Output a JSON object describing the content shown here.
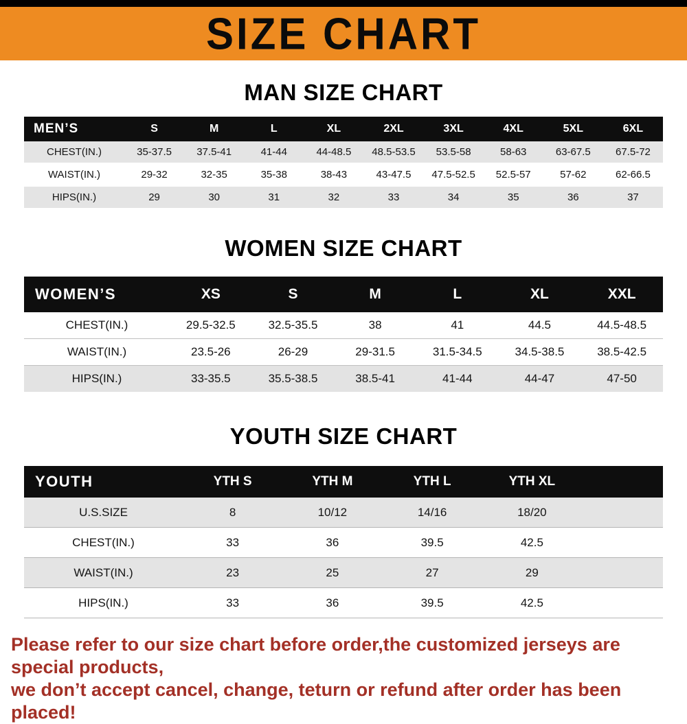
{
  "banner": {
    "title": "SIZE CHART"
  },
  "colors": {
    "banner_orange": "#ee8b21",
    "table_header_black": "#0e0e0e",
    "stripe_gray": "#e4e4e4",
    "footer_red": "#a33026"
  },
  "sections": [
    {
      "heading": "MAN SIZE CHART",
      "table": {
        "header": [
          "MEN’S",
          "S",
          "M",
          "L",
          "XL",
          "2XL",
          "3XL",
          "4XL",
          "5XL",
          "6XL"
        ],
        "rows": [
          [
            "CHEST(IN.)",
            "35-37.5",
            "37.5-41",
            "41-44",
            "44-48.5",
            "48.5-53.5",
            "53.5-58",
            "58-63",
            "63-67.5",
            "67.5-72"
          ],
          [
            "WAIST(IN.)",
            "29-32",
            "32-35",
            "35-38",
            "38-43",
            "43-47.5",
            "47.5-52.5",
            "52.5-57",
            "57-62",
            "62-66.5"
          ],
          [
            "HIPS(IN.)",
            "29",
            "30",
            "31",
            "32",
            "33",
            "34",
            "35",
            "36",
            "37"
          ]
        ]
      }
    },
    {
      "heading": "WOMEN SIZE CHART",
      "table": {
        "header": [
          "WOMEN’S",
          "XS",
          "S",
          "M",
          "L",
          "XL",
          "XXL"
        ],
        "rows": [
          [
            "CHEST(IN.)",
            "29.5-32.5",
            "32.5-35.5",
            "38",
            "41",
            "44.5",
            "44.5-48.5"
          ],
          [
            "WAIST(IN.)",
            "23.5-26",
            "26-29",
            "29-31.5",
            "31.5-34.5",
            "34.5-38.5",
            "38.5-42.5"
          ],
          [
            "HIPS(IN.)",
            "33-35.5",
            "35.5-38.5",
            "38.5-41",
            "41-44",
            "44-47",
            "47-50"
          ]
        ]
      }
    },
    {
      "heading": "YOUTH SIZE CHART",
      "table": {
        "header": [
          "YOUTH",
          "YTH S",
          "YTH M",
          "YTH L",
          "YTH XL"
        ],
        "rows": [
          [
            "U.S.SIZE",
            "8",
            "10/12",
            "14/16",
            "18/20"
          ],
          [
            "CHEST(IN.)",
            "33",
            "36",
            "39.5",
            "42.5"
          ],
          [
            "WAIST(IN.)",
            "23",
            "25",
            "27",
            "29"
          ],
          [
            "HIPS(IN.)",
            "33",
            "36",
            "39.5",
            "42.5"
          ]
        ]
      }
    }
  ],
  "footer": {
    "line1": "Please refer to our size chart before order,the customized jerseys are special products,",
    "line2": "we don’t accept cancel, change, teturn or refund after order has been placed!"
  }
}
